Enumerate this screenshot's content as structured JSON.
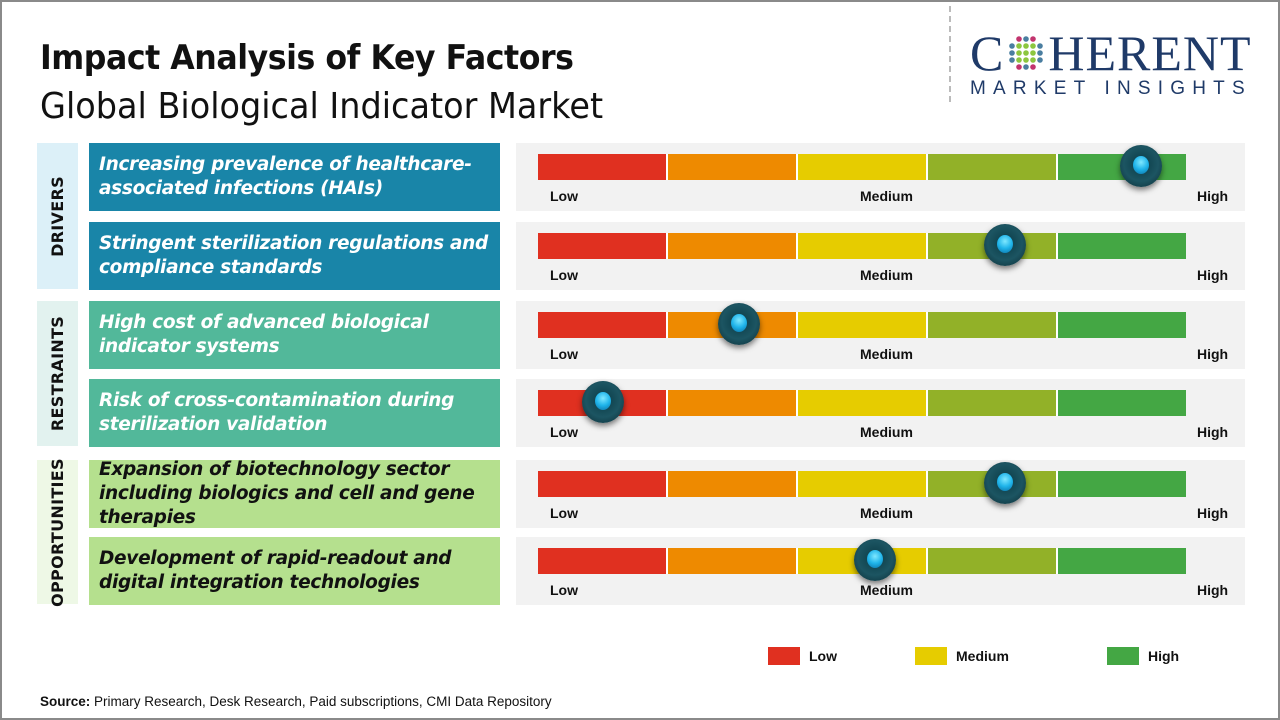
{
  "header": {
    "title": "Impact Analysis of Key Factors",
    "subtitle": "Global Biological Indicator Market"
  },
  "logo": {
    "top": "COHERENT",
    "bottom": "MARKET INSIGHTS"
  },
  "colors": {
    "scale": [
      "#e03020",
      "#ee8a00",
      "#e6cc00",
      "#92b128",
      "#44a744"
    ],
    "knob": "#1fb4ea"
  },
  "chart_data": {
    "type": "gauge-scale",
    "scale_labels": {
      "low": "Low",
      "medium": "Medium",
      "high": "High"
    },
    "categories": [
      {
        "name": "DRIVERS",
        "box_color": "#dcf0f8",
        "item_color": "#1985a8",
        "text_color": "#ffffff",
        "items": [
          {
            "label": "Increasing prevalence of healthcare-associated infections (HAIs)",
            "impact": 0.93
          },
          {
            "label": "Stringent sterilization regulations and compliance standards",
            "impact": 0.72
          }
        ]
      },
      {
        "name": "RESTRAINTS",
        "box_color": "#e2f2ef",
        "item_color": "#52b89a",
        "text_color": "#ffffff",
        "items": [
          {
            "label": "High cost of advanced biological indicator systems",
            "impact": 0.31
          },
          {
            "label": "Risk of cross-contamination during sterilization validation",
            "impact": 0.1
          }
        ]
      },
      {
        "name": "OPPORTUNITIES",
        "box_color": "#eef8e6",
        "item_color": "#b5e08e",
        "text_color": "#111111",
        "items": [
          {
            "label": "Expansion of biotechnology sector including biologics and cell and gene therapies",
            "impact": 0.72
          },
          {
            "label": "Development of rapid-readout and digital integration technologies",
            "impact": 0.52
          }
        ]
      }
    ]
  },
  "legend": [
    {
      "label": "Low",
      "color": "#e03020"
    },
    {
      "label": "Medium",
      "color": "#e6cc00"
    },
    {
      "label": "High",
      "color": "#44a744"
    }
  ],
  "source": {
    "prefix": "Source:",
    "text": " Primary Research, Desk Research, Paid subscriptions, CMI Data Repository"
  }
}
